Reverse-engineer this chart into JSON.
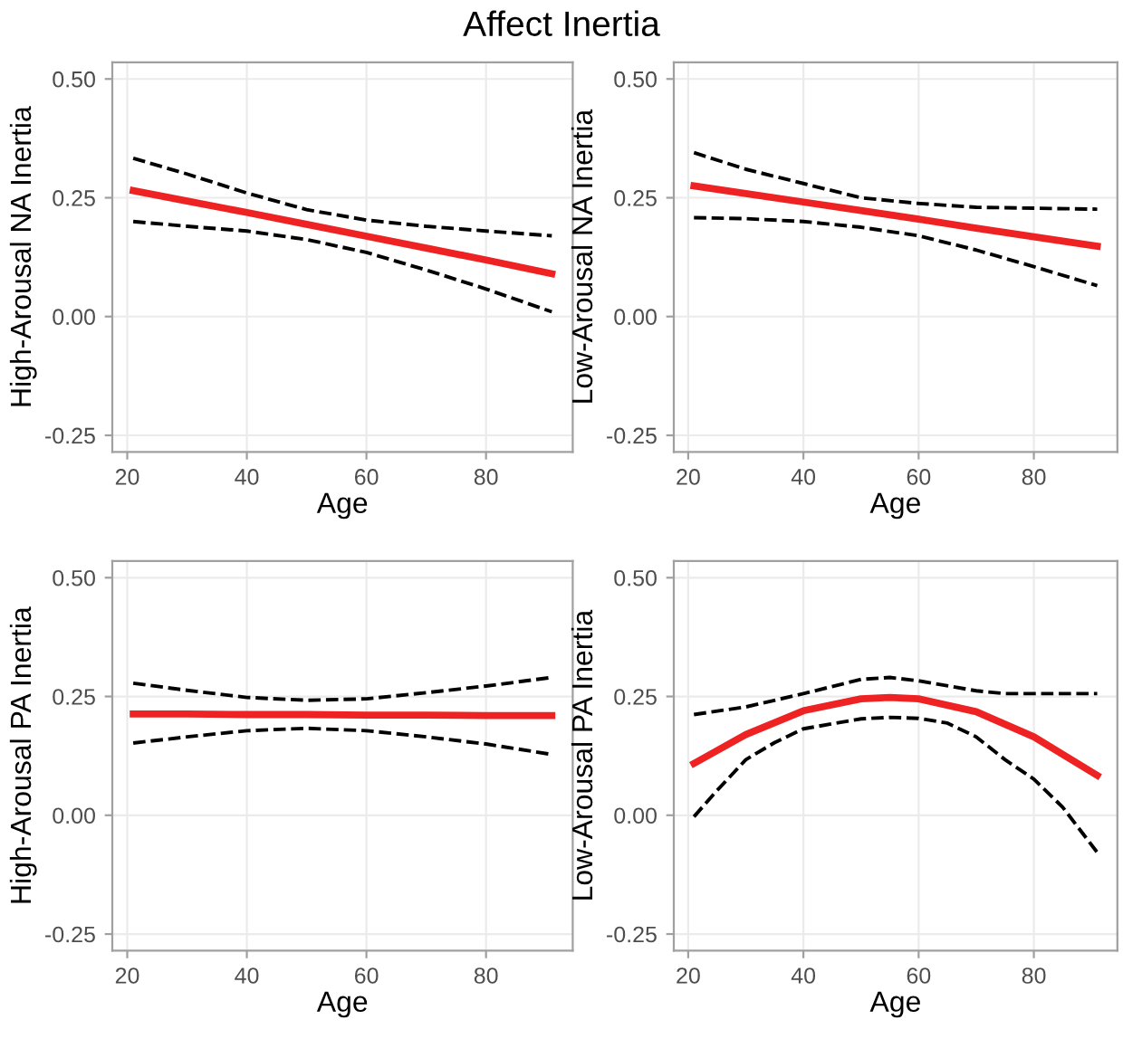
{
  "chart_data": [
    {
      "type": "line",
      "title": "Affect Inertia",
      "xlabel": "Age",
      "ylabel": "High-Arousal NA Inertia",
      "xlim": [
        17.5,
        94.5
      ],
      "ylim": [
        -0.285,
        0.535
      ],
      "xticks": [
        20,
        40,
        60,
        80
      ],
      "yticks": [
        {
          "value": -0.25,
          "label": "-0.25"
        },
        {
          "value": 0,
          "label": "0.00"
        },
        {
          "value": 0.25,
          "label": "0.25"
        },
        {
          "value": 0.5,
          "label": "0.50"
        }
      ],
      "grid": true,
      "x": [
        21,
        30,
        40,
        50,
        60,
        70,
        80,
        91
      ],
      "series": [
        {
          "color": "#ee2222",
          "line_style": "solid",
          "values": [
            0.265,
            0.243,
            0.219,
            0.194,
            0.169,
            0.144,
            0.119,
            0.09
          ]
        },
        {
          "color": "#000000",
          "line_style": "dashed",
          "values": [
            0.333,
            0.3,
            0.26,
            0.225,
            0.203,
            0.19,
            0.18,
            0.17
          ]
        },
        {
          "color": "#000000",
          "line_style": "dashed",
          "values": [
            0.2,
            0.19,
            0.18,
            0.162,
            0.135,
            0.098,
            0.058,
            0.01
          ]
        }
      ]
    },
    {
      "type": "line",
      "xlabel": "Age",
      "ylabel": "Low-Arousal NA Inertia",
      "xlim": [
        17.5,
        94.5
      ],
      "ylim": [
        -0.285,
        0.535
      ],
      "xticks": [
        20,
        40,
        60,
        80
      ],
      "yticks": [
        {
          "value": -0.25,
          "label": "-0.25"
        },
        {
          "value": 0,
          "label": "0.00"
        },
        {
          "value": 0.25,
          "label": "0.25"
        },
        {
          "value": 0.5,
          "label": "0.50"
        }
      ],
      "grid": true,
      "x": [
        21,
        30,
        40,
        50,
        60,
        70,
        80,
        91
      ],
      "series": [
        {
          "color": "#ee2222",
          "line_style": "solid",
          "values": [
            0.275,
            0.259,
            0.241,
            0.223,
            0.205,
            0.186,
            0.168,
            0.148
          ]
        },
        {
          "color": "#000000",
          "line_style": "dashed",
          "values": [
            0.345,
            0.31,
            0.28,
            0.25,
            0.238,
            0.23,
            0.228,
            0.226
          ]
        },
        {
          "color": "#000000",
          "line_style": "dashed",
          "values": [
            0.208,
            0.206,
            0.2,
            0.188,
            0.17,
            0.14,
            0.105,
            0.065
          ]
        }
      ]
    },
    {
      "type": "line",
      "xlabel": "Age",
      "ylabel": "High-Arousal PA Inertia",
      "xlim": [
        17.5,
        94.5
      ],
      "ylim": [
        -0.285,
        0.535
      ],
      "xticks": [
        20,
        40,
        60,
        80
      ],
      "yticks": [
        {
          "value": -0.25,
          "label": "-0.25"
        },
        {
          "value": 0,
          "label": "0.00"
        },
        {
          "value": 0.25,
          "label": "0.25"
        },
        {
          "value": 0.5,
          "label": "0.50"
        }
      ],
      "grid": true,
      "x": [
        21,
        30,
        40,
        50,
        60,
        70,
        80,
        91
      ],
      "series": [
        {
          "color": "#ee2222",
          "line_style": "solid",
          "values": [
            0.213,
            0.213,
            0.212,
            0.212,
            0.211,
            0.211,
            0.21,
            0.21
          ]
        },
        {
          "color": "#000000",
          "line_style": "dashed",
          "values": [
            0.278,
            0.263,
            0.248,
            0.242,
            0.245,
            0.258,
            0.272,
            0.29
          ]
        },
        {
          "color": "#000000",
          "line_style": "dashed",
          "values": [
            0.152,
            0.165,
            0.178,
            0.183,
            0.178,
            0.165,
            0.15,
            0.128
          ]
        }
      ]
    },
    {
      "type": "line",
      "xlabel": "Age",
      "ylabel": "Low-Arousal PA Inertia",
      "xlim": [
        17.5,
        94.5
      ],
      "ylim": [
        -0.285,
        0.535
      ],
      "xticks": [
        20,
        40,
        60,
        80
      ],
      "yticks": [
        {
          "value": -0.25,
          "label": "-0.25"
        },
        {
          "value": 0,
          "label": "0.00"
        },
        {
          "value": 0.25,
          "label": "0.25"
        },
        {
          "value": 0.5,
          "label": "0.50"
        }
      ],
      "grid": true,
      "series": [
        {
          "color": "#ee2222",
          "line_style": "solid",
          "x": [
            21,
            30,
            40,
            50,
            55,
            60,
            70,
            80,
            91
          ],
          "values": [
            0.109,
            0.17,
            0.22,
            0.245,
            0.248,
            0.245,
            0.218,
            0.165,
            0.084
          ]
        },
        {
          "color": "#000000",
          "line_style": "dashed",
          "x": [
            21,
            30,
            40,
            50,
            55,
            60,
            70,
            75,
            80,
            91
          ],
          "values": [
            0.212,
            0.228,
            0.256,
            0.286,
            0.29,
            0.283,
            0.262,
            0.256,
            0.256,
            0.256
          ]
        },
        {
          "color": "#000000",
          "line_style": "dashed",
          "x": [
            21,
            25,
            30,
            35,
            40,
            50,
            55,
            60,
            65,
            70,
            75,
            80,
            85,
            91
          ],
          "values": [
            -0.003,
            0.052,
            0.117,
            0.153,
            0.182,
            0.203,
            0.206,
            0.204,
            0.194,
            0.165,
            0.117,
            0.076,
            0.017,
            -0.078
          ]
        }
      ]
    }
  ]
}
